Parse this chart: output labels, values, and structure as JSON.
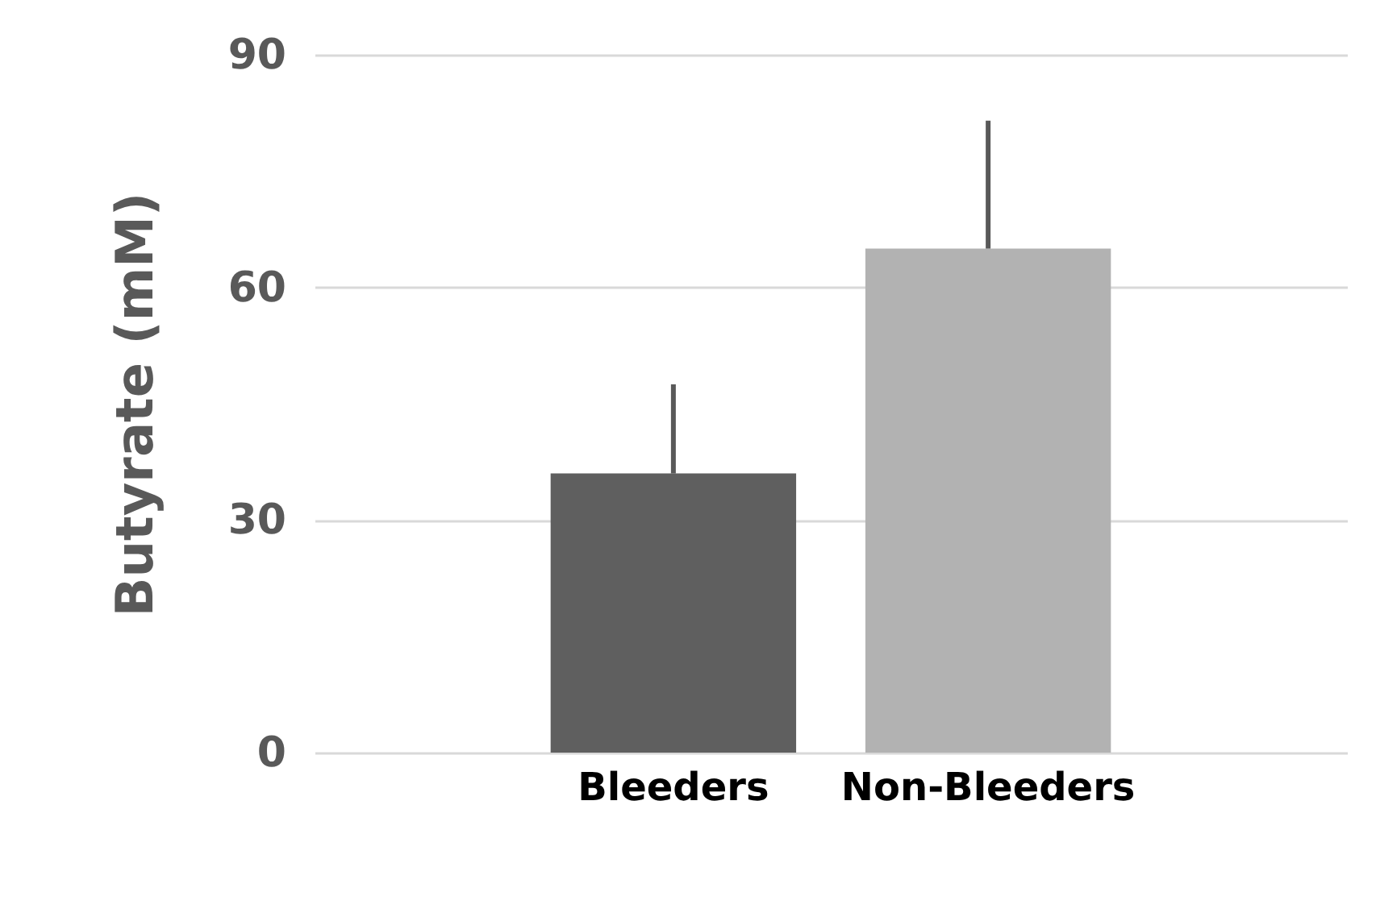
{
  "chart_data": {
    "type": "bar",
    "ylabel": "Butyrate (mM)",
    "categories": [
      "Bleeders",
      "Non-Bleeders"
    ],
    "values": [
      36,
      65
    ],
    "colors": [
      "#5f5f5f",
      "#b2b2b2"
    ],
    "errors": [
      [
        36,
        47.5
      ],
      [
        65,
        81.5
      ]
    ],
    "ylim": [
      0,
      90
    ],
    "yticks": [
      0,
      30,
      60,
      90
    ],
    "grid": "y"
  }
}
